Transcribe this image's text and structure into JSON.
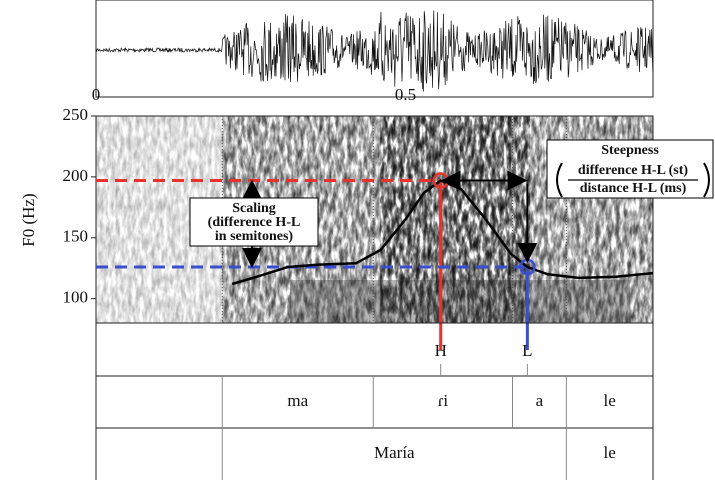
{
  "chart_data": {
    "type": "line",
    "ylabel": "F0 (Hz)",
    "xlim": [
      0,
      0.9
    ],
    "xticks": [
      0,
      0.5
    ],
    "ylim": [
      80,
      250
    ],
    "yticks": [
      100,
      150,
      200,
      250
    ],
    "x": [
      0.22,
      0.26,
      0.31,
      0.36,
      0.42,
      0.46,
      0.5,
      0.53,
      0.557,
      0.59,
      0.63,
      0.67,
      0.697,
      0.73,
      0.78,
      0.84,
      0.9
    ],
    "values": [
      112,
      118,
      126,
      128,
      129,
      140,
      165,
      187,
      197,
      190,
      165,
      137,
      126,
      120,
      117,
      118,
      121
    ],
    "color": "#000000",
    "markers": [
      {
        "label": "H",
        "x": 0.557,
        "y": 197,
        "color": "#e8322c"
      },
      {
        "label": "L",
        "x": 0.697,
        "y": 126,
        "color": "#3a4fd0"
      }
    ],
    "scaling": {
      "title": "Scaling",
      "lines": [
        "(difference H-L",
        "in semitones)"
      ]
    },
    "steepness": {
      "title": "Steepness",
      "numerator": "difference H-L (st)",
      "denominator": "distance H-L (ms)"
    }
  },
  "textgrid": {
    "tiers": [
      {
        "boundaries": [
          0.204,
          0.448,
          0.673,
          0.76
        ],
        "labels": [
          null,
          "ma",
          "ɾi",
          "a",
          "le"
        ]
      },
      {
        "boundaries": [
          0.204,
          0.76
        ],
        "labels": [
          null,
          "María",
          "le"
        ]
      }
    ]
  }
}
